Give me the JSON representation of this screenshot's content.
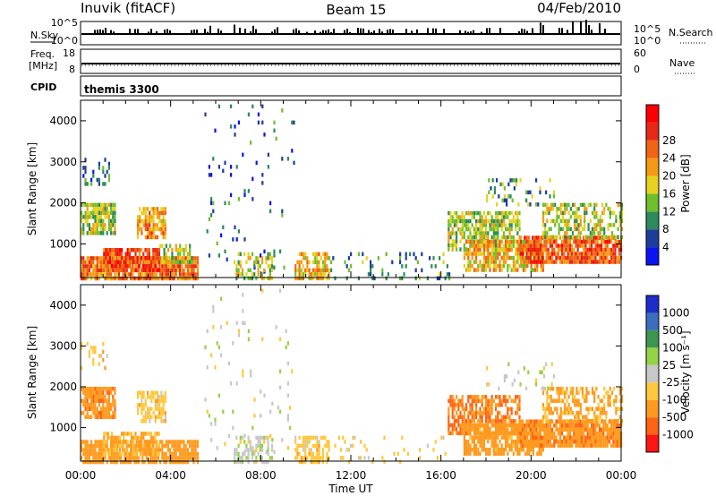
{
  "header": {
    "station": "Inuvik (fitACF)",
    "beam": "Beam 15",
    "date": "04/Feb/2010"
  },
  "strips": {
    "nsky_label": "N.Sky",
    "nsky_ticks": [
      "10^5",
      "10^0"
    ],
    "nsearch_label": "N.Search",
    "nsearch_ticks": [
      "10^5",
      "10^0"
    ],
    "freq_label": "Freq.",
    "freq_unit": "[MHz]",
    "freq_ticks": [
      "18",
      "8"
    ],
    "nave_label": "Nave",
    "nave_ticks": [
      "60",
      "0"
    ],
    "cpid_label": "CPID",
    "cpid_value": "themis 3300"
  },
  "colors": {
    "power": [
      "#0a14f0",
      "#1e3c9b",
      "#2d8a5a",
      "#6fbe2c",
      "#e6d21e",
      "#f59a14",
      "#f06414",
      "#e62814",
      "#ff0000"
    ],
    "velocity": [
      "#ff1414",
      "#ff6414",
      "#ff9a1e",
      "#ffc83c",
      "#c8c8c8",
      "#96d246",
      "#3c9650",
      "#3c6ebe",
      "#1e2dc8"
    ]
  },
  "chart_data": [
    {
      "type": "heatmap",
      "title": "Power",
      "xlabel": "",
      "ylabel": "Slant Range [km]",
      "x_ticks": [
        "00:00",
        "04:00",
        "08:00",
        "12:00",
        "16:00",
        "20:00",
        "00:00"
      ],
      "xlim_hours": [
        0,
        24
      ],
      "y_ticks": [
        1000,
        2000,
        3000,
        4000
      ],
      "ylim": [
        180,
        4500
      ],
      "colorbar_label": "Power [dB]",
      "colorbar_ticks": [
        4,
        8,
        12,
        16,
        20,
        24,
        28
      ],
      "colorbar_range": [
        0,
        32
      ],
      "regions": [
        {
          "t": [
            0.0,
            5.2
          ],
          "r": [
            200,
            700
          ],
          "value": 22,
          "density": 0.9
        },
        {
          "t": [
            1.0,
            3.5
          ],
          "r": [
            400,
            900
          ],
          "value": 25,
          "density": 0.8
        },
        {
          "t": [
            3.5,
            5.0
          ],
          "r": [
            600,
            1000
          ],
          "value": 14,
          "density": 0.6
        },
        {
          "t": [
            0.0,
            1.5
          ],
          "r": [
            1300,
            2000
          ],
          "value": 14,
          "density": 0.8
        },
        {
          "t": [
            2.5,
            3.8
          ],
          "r": [
            1200,
            1900
          ],
          "value": 20,
          "density": 0.7
        },
        {
          "t": [
            0.0,
            1.3
          ],
          "r": [
            2500,
            3100
          ],
          "value": 8,
          "density": 0.2
        },
        {
          "t": [
            5.5,
            9.5
          ],
          "r": [
            300,
            4400
          ],
          "value": 6,
          "density": 0.04
        },
        {
          "t": [
            6.8,
            8.5
          ],
          "r": [
            200,
            800
          ],
          "value": 14,
          "density": 0.5
        },
        {
          "t": [
            9.5,
            11.0
          ],
          "r": [
            200,
            800
          ],
          "value": 18,
          "density": 0.7
        },
        {
          "t": [
            11.0,
            16.5
          ],
          "r": [
            200,
            800
          ],
          "value": 10,
          "density": 0.12
        },
        {
          "t": [
            16.3,
            19.5
          ],
          "r": [
            900,
            1800
          ],
          "value": 14,
          "density": 0.7
        },
        {
          "t": [
            17.0,
            20.5
          ],
          "r": [
            400,
            1100
          ],
          "value": 18,
          "density": 0.75
        },
        {
          "t": [
            19.5,
            24.0
          ],
          "r": [
            600,
            1200
          ],
          "value": 24,
          "density": 0.9
        },
        {
          "t": [
            20.5,
            24.0
          ],
          "r": [
            1200,
            2000
          ],
          "value": 14,
          "density": 0.5
        },
        {
          "t": [
            18.0,
            21.0
          ],
          "r": [
            2000,
            2600
          ],
          "value": 10,
          "density": 0.15
        }
      ]
    },
    {
      "type": "heatmap",
      "title": "Velocity",
      "xlabel": "Time UT",
      "ylabel": "Slant Range [km]",
      "x_ticks": [
        "00:00",
        "04:00",
        "08:00",
        "12:00",
        "16:00",
        "20:00",
        "00:00"
      ],
      "xlim_hours": [
        0,
        24
      ],
      "y_ticks": [
        1000,
        2000,
        3000,
        4000
      ],
      "ylim": [
        180,
        4500
      ],
      "colorbar_label": "Velocity [m s⁻¹]",
      "colorbar_ticks": [
        "1000",
        "500",
        "100",
        "25",
        "-25",
        "-100",
        "-500",
        "-1000"
      ],
      "regions": [
        {
          "t": [
            0.0,
            5.2
          ],
          "r": [
            200,
            700
          ],
          "value": -300,
          "density": 0.85
        },
        {
          "t": [
            1.0,
            3.5
          ],
          "r": [
            400,
            900
          ],
          "value": -100,
          "density": 0.6
        },
        {
          "t": [
            0.0,
            1.5
          ],
          "r": [
            1300,
            2000
          ],
          "value": -400,
          "density": 0.8
        },
        {
          "t": [
            2.5,
            3.8
          ],
          "r": [
            1200,
            1900
          ],
          "value": -60,
          "density": 0.6
        },
        {
          "t": [
            0.0,
            1.3
          ],
          "r": [
            2500,
            3100
          ],
          "value": -60,
          "density": 0.2
        },
        {
          "t": [
            5.5,
            9.5
          ],
          "r": [
            300,
            4400
          ],
          "value": 0,
          "density": 0.04
        },
        {
          "t": [
            6.8,
            8.5
          ],
          "r": [
            200,
            800
          ],
          "value": 10,
          "density": 0.5
        },
        {
          "t": [
            9.5,
            11.0
          ],
          "r": [
            200,
            800
          ],
          "value": -60,
          "density": 0.6
        },
        {
          "t": [
            11.0,
            16.5
          ],
          "r": [
            200,
            800
          ],
          "value": -50,
          "density": 0.1
        },
        {
          "t": [
            16.3,
            19.5
          ],
          "r": [
            900,
            1800
          ],
          "value": -500,
          "density": 0.7
        },
        {
          "t": [
            17.0,
            20.5
          ],
          "r": [
            400,
            1100
          ],
          "value": -200,
          "density": 0.75
        },
        {
          "t": [
            19.5,
            24.0
          ],
          "r": [
            600,
            1200
          ],
          "value": -400,
          "density": 0.9
        },
        {
          "t": [
            20.5,
            24.0
          ],
          "r": [
            1200,
            2000
          ],
          "value": -120,
          "density": 0.5
        },
        {
          "t": [
            18.0,
            21.0
          ],
          "r": [
            2000,
            2600
          ],
          "value": 0,
          "density": 0.15
        }
      ]
    }
  ]
}
